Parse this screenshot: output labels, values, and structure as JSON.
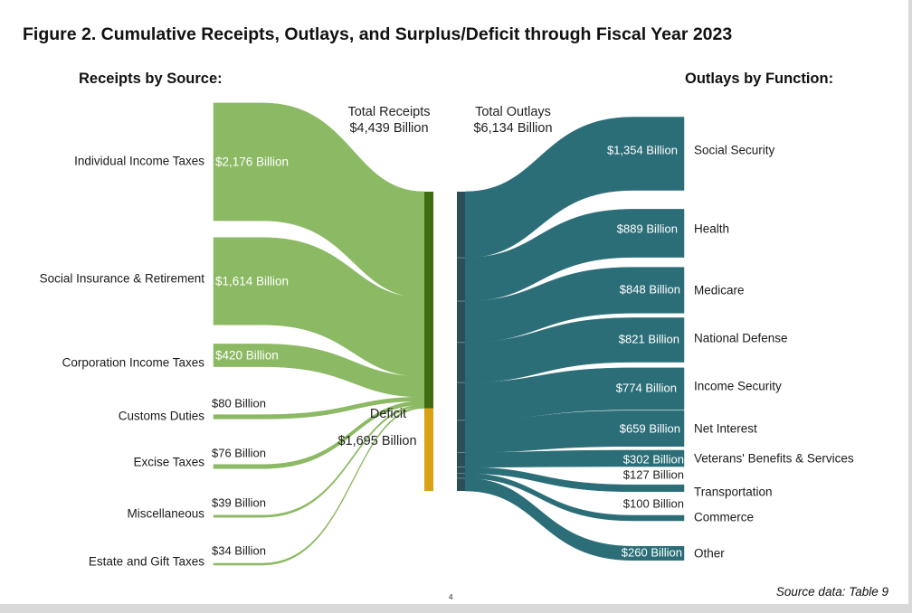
{
  "figure": {
    "title": "Figure 2. Cumulative Receipts, Outlays, and Surplus/Deficit through Fiscal Year 2023",
    "receipts_heading": "Receipts by Source:",
    "outlays_heading": "Outlays by Function:",
    "total_receipts_label": "Total Receipts",
    "total_receipts_value": "$4,439 Billion",
    "total_outlays_label": "Total Outlays",
    "total_outlays_value": "$6,134 Billion",
    "deficit_label": "Deficit",
    "deficit_value": "$1,695 Billion",
    "source_note": "Source data: Table 9",
    "page_number": "4"
  },
  "colors": {
    "receipts": "#8cb963",
    "receipts_bar": "#3f6b12",
    "deficit": "#d9a114",
    "outlays": "#2c6e78",
    "outlays_bar": "#2a4f57"
  },
  "chart_data": {
    "type": "sankey",
    "units": "Billion",
    "receipts": [
      {
        "name": "Individual Income Taxes",
        "value": 2176,
        "value_label": "$2,176 Billion"
      },
      {
        "name": "Social Insurance & Retirement",
        "value": 1614,
        "value_label": "$1,614 Billion"
      },
      {
        "name": "Corporation Income Taxes",
        "value": 420,
        "value_label": "$420 Billion"
      },
      {
        "name": "Customs Duties",
        "value": 80,
        "value_label": "$80 Billion"
      },
      {
        "name": "Excise Taxes",
        "value": 76,
        "value_label": "$76 Billion"
      },
      {
        "name": "Miscellaneous",
        "value": 39,
        "value_label": "$39 Billion"
      },
      {
        "name": "Estate and Gift Taxes",
        "value": 34,
        "value_label": "$34 Billion"
      }
    ],
    "deficit": {
      "name": "Deficit",
      "value": 1695
    },
    "outlays": [
      {
        "name": "Social Security",
        "value": 1354,
        "value_label": "$1,354 Billion"
      },
      {
        "name": "Health",
        "value": 889,
        "value_label": "$889 Billion"
      },
      {
        "name": "Medicare",
        "value": 848,
        "value_label": "$848 Billion"
      },
      {
        "name": "National Defense",
        "value": 821,
        "value_label": "$821 Billion"
      },
      {
        "name": "Income Security",
        "value": 774,
        "value_label": "$774 Billion"
      },
      {
        "name": "Net Interest",
        "value": 659,
        "value_label": "$659 Billion"
      },
      {
        "name": "Veterans' Benefits & Services",
        "value": 302,
        "value_label": "$302 Billion"
      },
      {
        "name": "Transportation",
        "value": 127,
        "value_label": "$127 Billion"
      },
      {
        "name": "Commerce",
        "value": 100,
        "value_label": "$100 Billion"
      },
      {
        "name": "Other",
        "value": 260,
        "value_label": "$260 Billion"
      }
    ],
    "total_receipts": 4439,
    "total_outlays": 6134
  }
}
